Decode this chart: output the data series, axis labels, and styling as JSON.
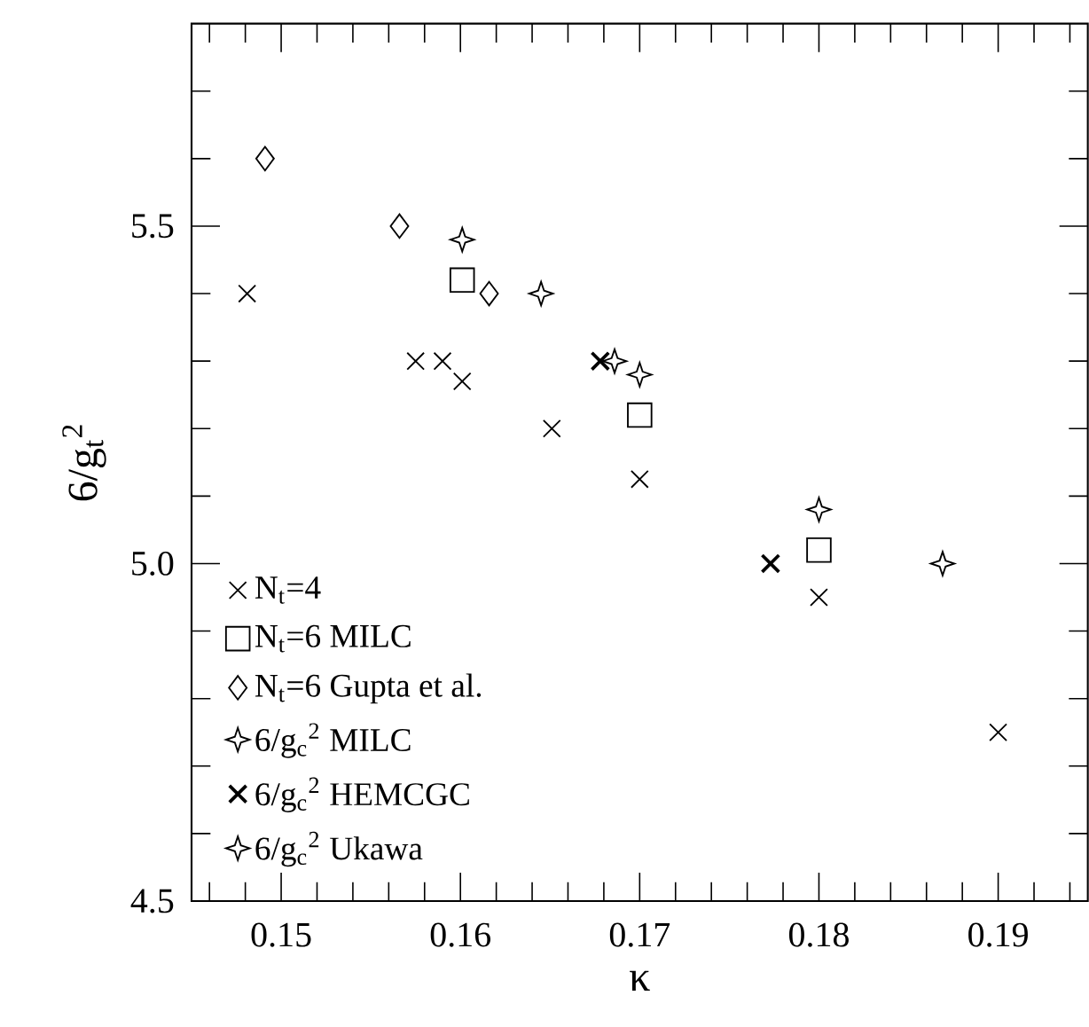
{
  "chart_data": {
    "type": "scatter",
    "xlabel": "κ",
    "ylabel": "6/g$_{t}$$^{2}$",
    "xlim": [
      0.145,
      0.195
    ],
    "ylim": [
      4.5,
      5.8
    ],
    "xticks": [
      {
        "value": 0.146,
        "label": null
      },
      {
        "value": 0.148,
        "label": null
      },
      0.15,
      {
        "value": 0.152,
        "label": null
      },
      {
        "value": 0.154,
        "label": null
      },
      {
        "value": 0.156,
        "label": null
      },
      {
        "value": 0.158,
        "label": null
      },
      0.16,
      {
        "value": 0.162,
        "label": null
      },
      {
        "value": 0.164,
        "label": null
      },
      {
        "value": 0.166,
        "label": null
      },
      {
        "value": 0.168,
        "label": null
      },
      0.17,
      {
        "value": 0.172,
        "label": null
      },
      {
        "value": 0.174,
        "label": null
      },
      {
        "value": 0.176,
        "label": null
      },
      {
        "value": 0.178,
        "label": null
      },
      0.18,
      {
        "value": 0.182,
        "label": null
      },
      {
        "value": 0.184,
        "label": null
      },
      {
        "value": 0.186,
        "label": null
      },
      {
        "value": 0.188,
        "label": null
      },
      0.19,
      {
        "value": 0.192,
        "label": null
      },
      {
        "value": 0.194,
        "label": null
      }
    ],
    "yticks": [
      4.5,
      {
        "value": 4.6,
        "label": null
      },
      {
        "value": 4.7,
        "label": null
      },
      {
        "value": 4.8,
        "label": null
      },
      {
        "value": 4.9,
        "label": null
      },
      {
        "value": 5.0,
        "label": "5.0"
      },
      {
        "value": 5.1,
        "label": null
      },
      {
        "value": 5.2,
        "label": null
      },
      {
        "value": 5.3,
        "label": null
      },
      {
        "value": 5.4,
        "label": null
      },
      5.5,
      {
        "value": 5.6,
        "label": null
      },
      {
        "value": 5.7,
        "label": null
      }
    ],
    "grid": false,
    "legend": "bottom left",
    "series": [
      {
        "name": "N$_{t}$=4",
        "color": "#000000",
        "marker": "cross",
        "x": [
          0.1481,
          0.1575,
          0.159,
          0.1601,
          0.1651,
          0.17,
          0.18,
          0.19
        ],
        "values": [
          5.4,
          5.3,
          5.3,
          5.27,
          5.2,
          5.125,
          4.95,
          4.75
        ]
      },
      {
        "name": "N$_{t}$=6 MILC",
        "color": "#000000",
        "marker": "square",
        "x": [
          0.1601,
          0.17,
          0.18
        ],
        "values": [
          5.42,
          5.22,
          5.02
        ]
      },
      {
        "name": "N$_{t}$=6 Gupta et al.",
        "color": "#000000",
        "marker": "diamond",
        "x": [
          0.1491,
          0.1566,
          0.1616
        ],
        "values": [
          5.6,
          5.5,
          5.4
        ]
      },
      {
        "name": "6/g$_{c}$$^{2}$ MILC",
        "color": "#000000",
        "marker": "star",
        "x": [
          0.1601,
          0.17,
          0.18
        ],
        "values": [
          5.48,
          5.28,
          5.08
        ]
      },
      {
        "name": "6/g$_{c}$$^{2}$ HEMCGC",
        "color": "#000000",
        "marker": "cross",
        "x": [
          0.1678,
          0.1773
        ],
        "values": [
          5.3,
          5.0
        ]
      },
      {
        "name": "6/g$_{c}$$^{2}$ Ukawa",
        "color": "#000000",
        "marker": "star",
        "x": [
          0.1645,
          0.1686,
          0.1869
        ],
        "values": [
          5.4,
          5.3,
          5.0
        ]
      }
    ]
  }
}
